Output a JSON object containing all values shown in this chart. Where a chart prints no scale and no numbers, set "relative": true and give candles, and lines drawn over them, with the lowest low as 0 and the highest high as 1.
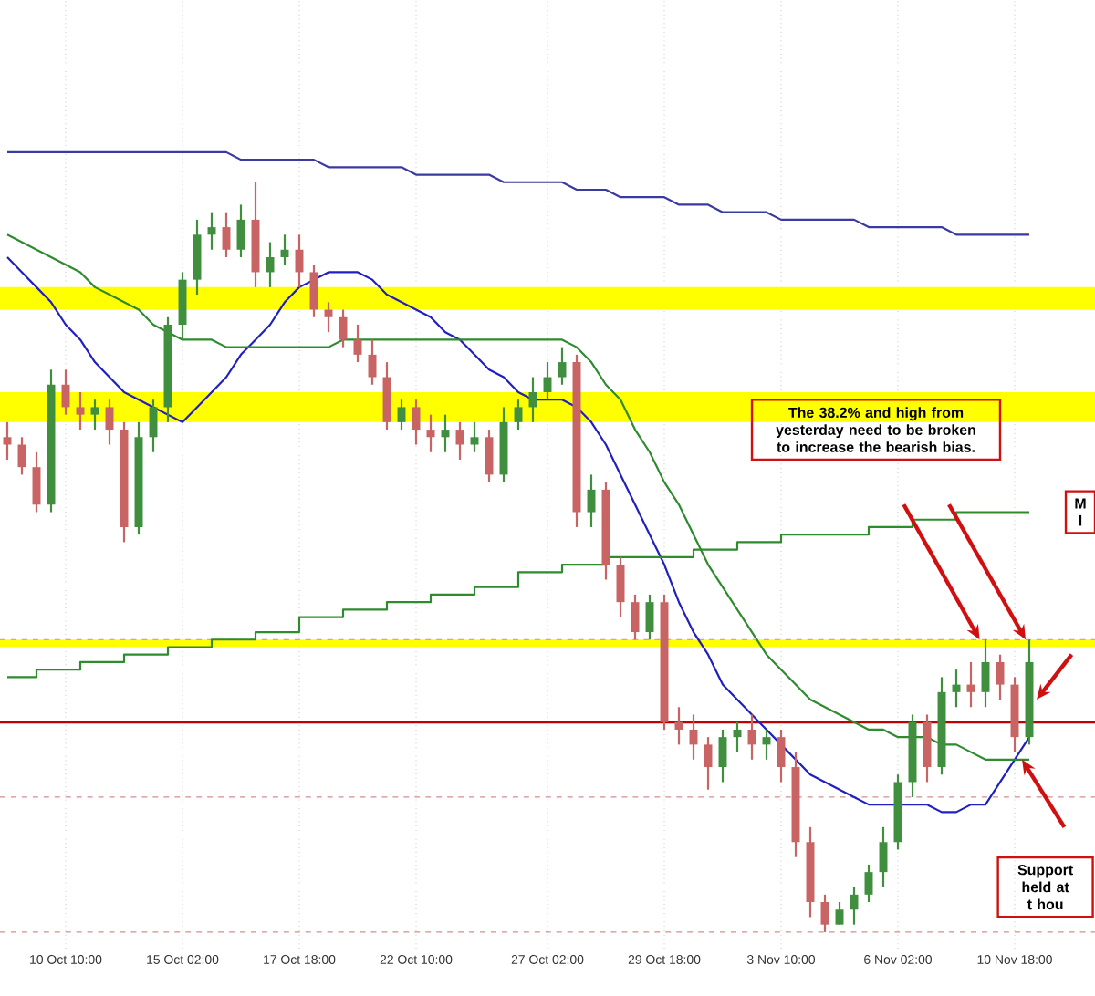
{
  "chart_data": {
    "type": "candlestick",
    "relative": true,
    "grid": "x",
    "categories": [
      null,
      null,
      null,
      null,
      "10 Oct 10:00",
      null,
      null,
      null,
      null,
      null,
      null,
      null,
      "15 Oct 02:00",
      null,
      null,
      null,
      null,
      null,
      null,
      null,
      "17 Oct 18:00",
      null,
      null,
      null,
      null,
      null,
      null,
      null,
      "22 Oct 10:00",
      null,
      null,
      null,
      null,
      null,
      null,
      null,
      null,
      "27 Oct 02:00",
      null,
      null,
      null,
      null,
      null,
      null,
      null,
      "29 Oct 18:00",
      null,
      null,
      null,
      null,
      null,
      null,
      null,
      "3 Nov 10:00",
      null,
      null,
      null,
      null,
      null,
      null,
      null,
      "6 Nov 02:00",
      null,
      null,
      null,
      null,
      null,
      null,
      null,
      "10 Nov 18:00",
      null
    ],
    "ohlc": [
      [
        0.66,
        0.68,
        0.63,
        0.65
      ],
      [
        0.65,
        0.66,
        0.61,
        0.62
      ],
      [
        0.62,
        0.64,
        0.56,
        0.57
      ],
      [
        0.57,
        0.75,
        0.56,
        0.73
      ],
      [
        0.73,
        0.75,
        0.69,
        0.7
      ],
      [
        0.7,
        0.72,
        0.67,
        0.69
      ],
      [
        0.69,
        0.71,
        0.67,
        0.7
      ],
      [
        0.7,
        0.71,
        0.65,
        0.67
      ],
      [
        0.67,
        0.68,
        0.52,
        0.54
      ],
      [
        0.54,
        0.68,
        0.53,
        0.66
      ],
      [
        0.66,
        0.71,
        0.64,
        0.7
      ],
      [
        0.7,
        0.82,
        0.68,
        0.81
      ],
      [
        0.81,
        0.88,
        0.79,
        0.87
      ],
      [
        0.87,
        0.95,
        0.85,
        0.93
      ],
      [
        0.93,
        0.96,
        0.91,
        0.94
      ],
      [
        0.94,
        0.96,
        0.9,
        0.91
      ],
      [
        0.91,
        0.97,
        0.9,
        0.95
      ],
      [
        0.95,
        1.0,
        0.86,
        0.88
      ],
      [
        0.88,
        0.92,
        0.86,
        0.9
      ],
      [
        0.9,
        0.93,
        0.89,
        0.91
      ],
      [
        0.91,
        0.93,
        0.86,
        0.88
      ],
      [
        0.88,
        0.89,
        0.82,
        0.83
      ],
      [
        0.83,
        0.84,
        0.8,
        0.82
      ],
      [
        0.82,
        0.83,
        0.78,
        0.79
      ],
      [
        0.79,
        0.81,
        0.76,
        0.77
      ],
      [
        0.77,
        0.79,
        0.73,
        0.74
      ],
      [
        0.74,
        0.76,
        0.67,
        0.68
      ],
      [
        0.68,
        0.71,
        0.67,
        0.7
      ],
      [
        0.7,
        0.71,
        0.65,
        0.67
      ],
      [
        0.67,
        0.69,
        0.64,
        0.66
      ],
      [
        0.66,
        0.69,
        0.64,
        0.67
      ],
      [
        0.67,
        0.68,
        0.63,
        0.65
      ],
      [
        0.65,
        0.68,
        0.64,
        0.66
      ],
      [
        0.66,
        0.67,
        0.6,
        0.61
      ],
      [
        0.61,
        0.7,
        0.6,
        0.68
      ],
      [
        0.68,
        0.71,
        0.67,
        0.7
      ],
      [
        0.7,
        0.74,
        0.68,
        0.72
      ],
      [
        0.72,
        0.76,
        0.71,
        0.74
      ],
      [
        0.74,
        0.78,
        0.73,
        0.76
      ],
      [
        0.76,
        0.77,
        0.54,
        0.56
      ],
      [
        0.56,
        0.61,
        0.54,
        0.59
      ],
      [
        0.59,
        0.6,
        0.47,
        0.49
      ],
      [
        0.49,
        0.5,
        0.42,
        0.44
      ],
      [
        0.44,
        0.45,
        0.39,
        0.4
      ],
      [
        0.4,
        0.45,
        0.39,
        0.44
      ],
      [
        0.44,
        0.45,
        0.27,
        0.28
      ],
      [
        0.28,
        0.3,
        0.25,
        0.27
      ],
      [
        0.27,
        0.29,
        0.23,
        0.25
      ],
      [
        0.25,
        0.26,
        0.19,
        0.22
      ],
      [
        0.22,
        0.27,
        0.2,
        0.26
      ],
      [
        0.26,
        0.28,
        0.24,
        0.27
      ],
      [
        0.27,
        0.29,
        0.23,
        0.25
      ],
      [
        0.25,
        0.27,
        0.23,
        0.26
      ],
      [
        0.26,
        0.27,
        0.2,
        0.22
      ],
      [
        0.22,
        0.24,
        0.1,
        0.12
      ],
      [
        0.12,
        0.14,
        0.02,
        0.04
      ],
      [
        0.04,
        0.05,
        0.0,
        0.01
      ],
      [
        0.01,
        0.04,
        0.01,
        0.03
      ],
      [
        0.03,
        0.06,
        0.01,
        0.05
      ],
      [
        0.05,
        0.09,
        0.04,
        0.08
      ],
      [
        0.08,
        0.14,
        0.06,
        0.12
      ],
      [
        0.12,
        0.21,
        0.11,
        0.2
      ],
      [
        0.2,
        0.29,
        0.18,
        0.28
      ],
      [
        0.28,
        0.29,
        0.2,
        0.22
      ],
      [
        0.22,
        0.34,
        0.21,
        0.32
      ],
      [
        0.32,
        0.35,
        0.3,
        0.33
      ],
      [
        0.33,
        0.36,
        0.3,
        0.32
      ],
      [
        0.32,
        0.39,
        0.3,
        0.36
      ],
      [
        0.36,
        0.37,
        0.31,
        0.33
      ],
      [
        0.33,
        0.34,
        0.24,
        0.26
      ],
      [
        0.26,
        0.39,
        0.25,
        0.36
      ]
    ],
    "series": [
      {
        "type": "line",
        "color": "#2020c0",
        "values": [
          0.9,
          0.88,
          0.86,
          0.84,
          0.81,
          0.79,
          0.76,
          0.74,
          0.72,
          0.71,
          0.7,
          0.69,
          0.68,
          0.7,
          0.72,
          0.74,
          0.77,
          0.79,
          0.81,
          0.84,
          0.86,
          0.87,
          0.88,
          0.88,
          0.88,
          0.87,
          0.85,
          0.84,
          0.83,
          0.82,
          0.8,
          0.79,
          0.77,
          0.75,
          0.74,
          0.72,
          0.71,
          0.71,
          0.71,
          0.7,
          0.68,
          0.65,
          0.61,
          0.57,
          0.53,
          0.49,
          0.44,
          0.4,
          0.37,
          0.33,
          0.31,
          0.29,
          0.27,
          0.25,
          0.23,
          0.21,
          0.2,
          0.19,
          0.18,
          0.17,
          0.17,
          0.17,
          0.17,
          0.17,
          0.16,
          0.16,
          0.17,
          0.17,
          0.2,
          0.23,
          0.26
        ]
      },
      {
        "type": "line",
        "color": "#2e8b2e",
        "values": [
          0.93,
          0.92,
          0.91,
          0.9,
          0.89,
          0.88,
          0.86,
          0.85,
          0.84,
          0.83,
          0.81,
          0.8,
          0.79,
          0.79,
          0.79,
          0.78,
          0.78,
          0.78,
          0.78,
          0.78,
          0.78,
          0.78,
          0.78,
          0.79,
          0.79,
          0.79,
          0.79,
          0.79,
          0.79,
          0.79,
          0.79,
          0.79,
          0.79,
          0.79,
          0.79,
          0.79,
          0.79,
          0.79,
          0.79,
          0.78,
          0.76,
          0.73,
          0.71,
          0.67,
          0.64,
          0.6,
          0.57,
          0.53,
          0.49,
          0.46,
          0.43,
          0.4,
          0.37,
          0.35,
          0.33,
          0.31,
          0.3,
          0.29,
          0.28,
          0.27,
          0.27,
          0.26,
          0.26,
          0.26,
          0.25,
          0.25,
          0.24,
          0.23,
          0.23,
          0.23,
          0.23
        ]
      },
      {
        "type": "step",
        "color": "#2e8b2e",
        "values": [
          0.34,
          0.34,
          0.35,
          0.35,
          0.35,
          0.36,
          0.36,
          0.36,
          0.37,
          0.37,
          0.37,
          0.38,
          0.38,
          0.38,
          0.39,
          0.39,
          0.39,
          0.4,
          0.4,
          0.4,
          0.42,
          0.42,
          0.42,
          0.43,
          0.43,
          0.43,
          0.44,
          0.44,
          0.44,
          0.45,
          0.45,
          0.45,
          0.46,
          0.46,
          0.46,
          0.48,
          0.48,
          0.48,
          0.49,
          0.49,
          0.49,
          0.5,
          0.5,
          0.5,
          0.5,
          0.5,
          0.5,
          0.51,
          0.51,
          0.51,
          0.52,
          0.52,
          0.52,
          0.53,
          0.53,
          0.53,
          0.53,
          0.53,
          0.53,
          0.54,
          0.54,
          0.54,
          0.55,
          0.55,
          0.55,
          0.56,
          0.56,
          0.56,
          0.56,
          0.56,
          0.56
        ]
      },
      {
        "type": "line",
        "color": "#3a3aa0",
        "values": [
          1.04,
          1.04,
          1.04,
          1.04,
          1.04,
          1.04,
          1.04,
          1.04,
          1.04,
          1.04,
          1.04,
          1.04,
          1.04,
          1.04,
          1.04,
          1.04,
          1.03,
          1.03,
          1.03,
          1.03,
          1.03,
          1.03,
          1.02,
          1.02,
          1.02,
          1.02,
          1.02,
          1.02,
          1.01,
          1.01,
          1.01,
          1.01,
          1.01,
          1.01,
          1.0,
          1.0,
          1.0,
          1.0,
          1.0,
          0.99,
          0.99,
          0.99,
          0.98,
          0.98,
          0.98,
          0.98,
          0.97,
          0.97,
          0.97,
          0.96,
          0.96,
          0.96,
          0.96,
          0.95,
          0.95,
          0.95,
          0.95,
          0.95,
          0.95,
          0.94,
          0.94,
          0.94,
          0.94,
          0.94,
          0.94,
          0.93,
          0.93,
          0.93,
          0.93,
          0.93,
          0.93
        ]
      }
    ],
    "bands": [
      {
        "axis": "y",
        "from": 0.83,
        "to": 0.86,
        "color": "#ffff00"
      },
      {
        "axis": "y",
        "from": 0.68,
        "to": 0.72,
        "color": "#ffff00"
      },
      {
        "axis": "y",
        "from": 0.38,
        "to": 0.39,
        "color": "#ffff00"
      }
    ],
    "ref_lines": [
      {
        "axis": "y",
        "value": 0.28,
        "color": "#c00000",
        "line_style": "solid"
      },
      {
        "axis": "y",
        "value": 0.39,
        "color": "#d09090",
        "line_style": "dashed"
      },
      {
        "axis": "y",
        "value": 0.18,
        "color": "#d09090",
        "line_style": "dashed"
      },
      {
        "axis": "y",
        "value": 0.0,
        "color": "#d09090",
        "line_style": "dashed"
      }
    ],
    "annotations": [
      "The 38.2% and high from yesterday need to be broken to increase the bearish bias.",
      "M l",
      "Support held at t hou"
    ]
  }
}
